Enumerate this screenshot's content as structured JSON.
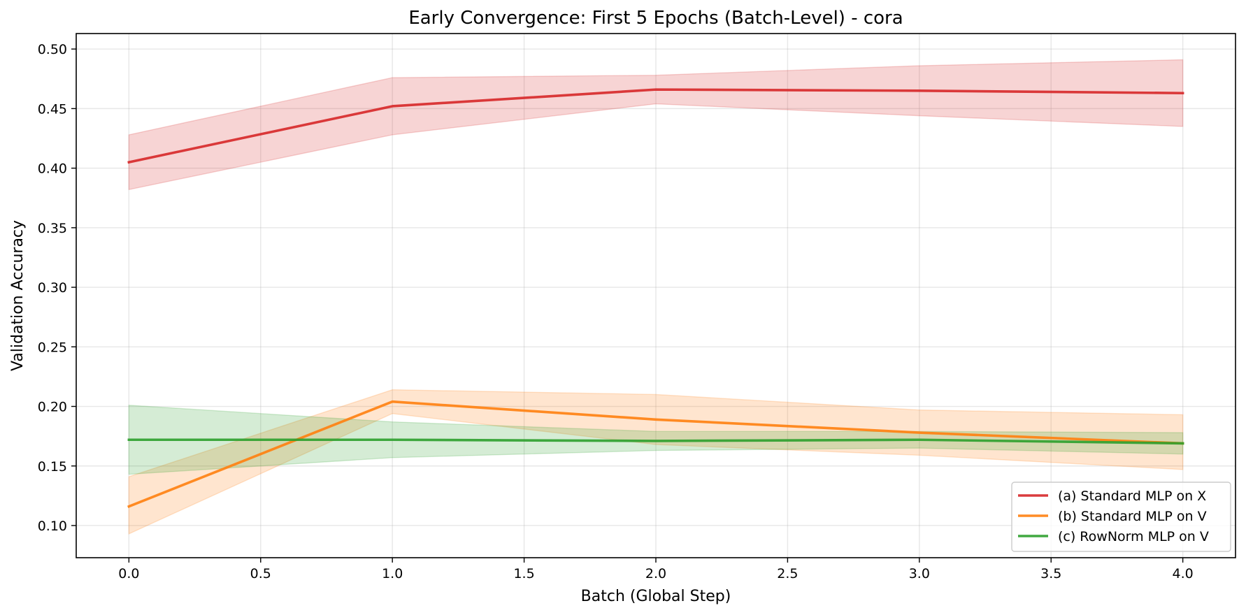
{
  "chart_data": {
    "type": "line",
    "title": "Early Convergence: First 5 Epochs (Batch-Level) - cora",
    "xlabel": "Batch (Global Step)",
    "ylabel": "Validation Accuracy",
    "xlim": [
      -0.2,
      4.2
    ],
    "ylim": [
      0.073,
      0.513
    ],
    "xticks": [
      0.0,
      0.5,
      1.0,
      1.5,
      2.0,
      2.5,
      3.0,
      3.5,
      4.0
    ],
    "xtick_labels": [
      "0.0",
      "0.5",
      "1.0",
      "1.5",
      "2.0",
      "2.5",
      "3.0",
      "3.5",
      "4.0"
    ],
    "yticks": [
      0.1,
      0.15,
      0.2,
      0.25,
      0.3,
      0.35,
      0.4,
      0.45,
      0.5
    ],
    "ytick_labels": [
      "0.10",
      "0.15",
      "0.20",
      "0.25",
      "0.30",
      "0.35",
      "0.40",
      "0.45",
      "0.50"
    ],
    "grid": true,
    "legend_position": "bottom-right",
    "x": [
      0,
      1,
      2,
      3,
      4
    ],
    "series": [
      {
        "name": "(a) Standard MLP on X",
        "color": "#d62728",
        "values": [
          0.405,
          0.452,
          0.466,
          0.465,
          0.463
        ],
        "lower": [
          0.382,
          0.428,
          0.454,
          0.444,
          0.435
        ],
        "upper": [
          0.428,
          0.476,
          0.478,
          0.486,
          0.491
        ]
      },
      {
        "name": "(b) Standard MLP on V",
        "color": "#ff7f0e",
        "values": [
          0.116,
          0.204,
          0.189,
          0.178,
          0.169
        ],
        "lower": [
          0.093,
          0.194,
          0.168,
          0.159,
          0.147
        ],
        "upper": [
          0.141,
          0.214,
          0.21,
          0.197,
          0.193
        ]
      },
      {
        "name": "(c) RowNorm MLP on V",
        "color": "#2ca02c",
        "values": [
          0.172,
          0.172,
          0.171,
          0.172,
          0.169
        ],
        "lower": [
          0.143,
          0.157,
          0.163,
          0.165,
          0.16
        ],
        "upper": [
          0.201,
          0.187,
          0.179,
          0.179,
          0.178
        ]
      }
    ]
  }
}
